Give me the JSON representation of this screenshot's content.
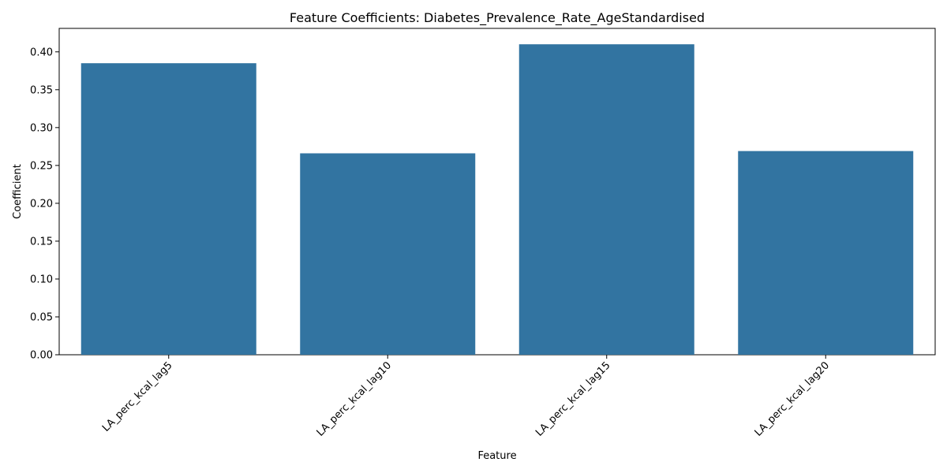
{
  "chart_data": {
    "type": "bar",
    "title": "Feature Coefficients: Diabetes_Prevalence_Rate_AgeStandardised",
    "xlabel": "Feature",
    "ylabel": "Coefficient",
    "categories": [
      "LA_perc_kcal_lag5",
      "LA_perc_kcal_lag10",
      "LA_perc_kcal_lag15",
      "LA_perc_kcal_lag20"
    ],
    "values": [
      0.385,
      0.266,
      0.41,
      0.269
    ],
    "ylim": [
      0,
      0.431
    ],
    "yticks": [
      0.0,
      0.05,
      0.1,
      0.15,
      0.2,
      0.25,
      0.3,
      0.35,
      0.4
    ],
    "ytick_labels": [
      "0.00",
      "0.05",
      "0.10",
      "0.15",
      "0.20",
      "0.25",
      "0.30",
      "0.35",
      "0.40"
    ],
    "bar_color": "#3274a1",
    "grid": false,
    "legend": "none"
  }
}
